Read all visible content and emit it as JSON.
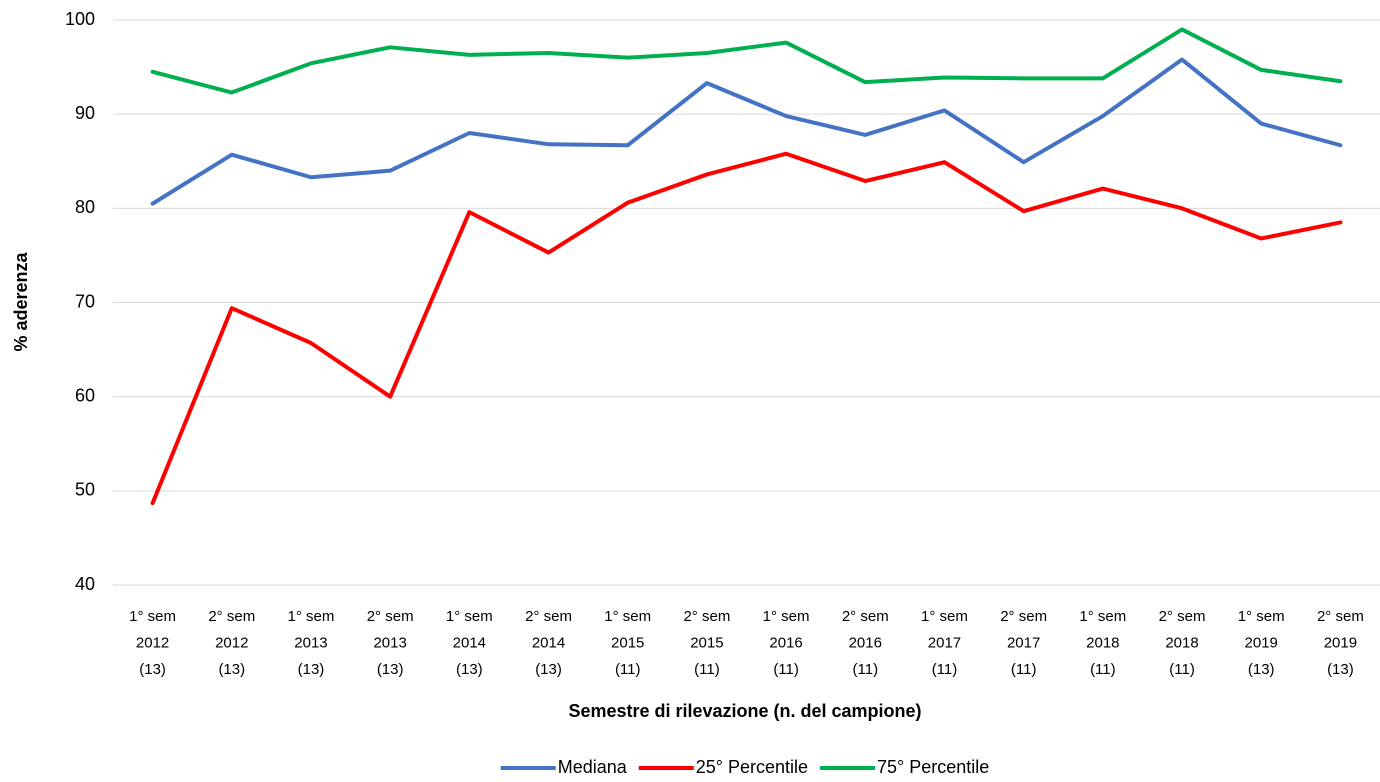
{
  "chart_data": {
    "type": "line",
    "x_label": "Semestre di rilevazione (n. del campione)",
    "y_label": "% aderenza",
    "categories": [
      [
        "1° sem",
        "2012",
        "(13)"
      ],
      [
        "2° sem",
        "2012",
        "(13)"
      ],
      [
        "1° sem",
        "2013",
        "(13)"
      ],
      [
        "2° sem",
        "2013",
        "(13)"
      ],
      [
        "1° sem",
        "2014",
        "(13)"
      ],
      [
        "2° sem",
        "2014",
        "(13)"
      ],
      [
        "1° sem",
        "2015",
        "(11)"
      ],
      [
        "2° sem",
        "2015",
        "(11)"
      ],
      [
        "1° sem",
        "2016",
        "(11)"
      ],
      [
        "2° sem",
        "2016",
        "(11)"
      ],
      [
        "1° sem",
        "2017",
        "(11)"
      ],
      [
        "2° sem",
        "2017",
        "(11)"
      ],
      [
        "1° sem",
        "2018",
        "(11)"
      ],
      [
        "2° sem",
        "2018",
        "(11)"
      ],
      [
        "1° sem",
        "2019",
        "(13)"
      ],
      [
        "2° sem",
        "2019",
        "(13)"
      ]
    ],
    "series": [
      {
        "name": "Mediana",
        "color": "#4472c4",
        "values": [
          80.5,
          85.7,
          83.3,
          84.0,
          88.0,
          86.8,
          86.7,
          93.3,
          89.8,
          87.8,
          90.4,
          84.9,
          89.8,
          95.8,
          89.0,
          86.7
        ]
      },
      {
        "name": "25° Percentile",
        "color": "#ff0000",
        "values": [
          48.7,
          69.4,
          65.7,
          60.0,
          79.6,
          75.3,
          80.6,
          83.6,
          85.8,
          82.9,
          84.9,
          79.7,
          82.1,
          80.0,
          76.8,
          78.5
        ]
      },
      {
        "name": "75° Percentile",
        "color": "#00b050",
        "values": [
          94.5,
          92.3,
          95.4,
          97.1,
          96.3,
          96.5,
          96.0,
          96.5,
          97.6,
          93.4,
          93.9,
          93.8,
          93.8,
          99.0,
          94.7,
          93.5
        ]
      }
    ],
    "ylim": [
      40,
      100
    ],
    "yticks": [
      40,
      50,
      60,
      70,
      80,
      90,
      100
    ],
    "grid": true,
    "legend": "bottom"
  }
}
